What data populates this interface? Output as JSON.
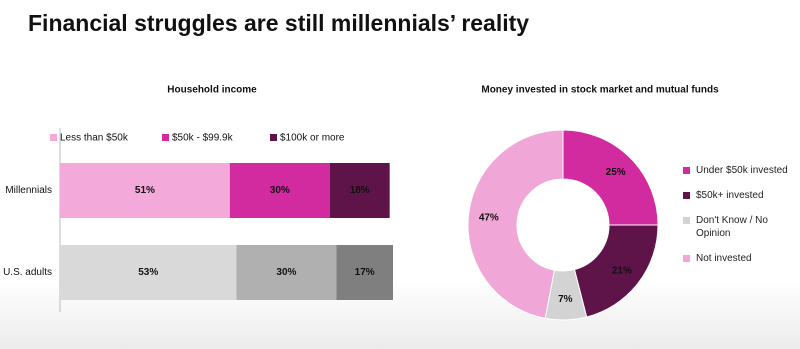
{
  "title": "Financial struggles are still millennials’ reality",
  "chart_data": [
    {
      "type": "stacked_bar",
      "title": "Household income",
      "categories": [
        "Millennials",
        "U.S. adults"
      ],
      "xlim": [
        0,
        100
      ],
      "series": [
        {
          "name": "Less than $50k",
          "colors": [
            "#f3a9d9",
            "#d9d9d9"
          ],
          "values": [
            51,
            53
          ],
          "value_labels": [
            "51%",
            "53%"
          ]
        },
        {
          "name": "$50k - $99.9k",
          "colors": [
            "#d22a9f",
            "#b0b0b0"
          ],
          "values": [
            30,
            30
          ],
          "value_labels": [
            "30%",
            "30%"
          ]
        },
        {
          "name": "$100k or more",
          "colors": [
            "#5f1449",
            "#7f7f7f"
          ],
          "values": [
            18,
            17
          ],
          "value_labels": [
            "18%",
            "17%"
          ]
        }
      ]
    },
    {
      "type": "donut",
      "title": "Money invested in stock market and mutual funds",
      "categories": [
        "Under $50k invested",
        "$50k+ invested",
        "Don't Know / No Opinion",
        "Not invested"
      ],
      "values": [
        25,
        21,
        7,
        47
      ],
      "value_labels": [
        "25%",
        "21%",
        "7%",
        "47%"
      ],
      "colors": [
        "#d22a9f",
        "#5f1449",
        "#d3d3d3",
        "#f0a6d6"
      ]
    }
  ]
}
